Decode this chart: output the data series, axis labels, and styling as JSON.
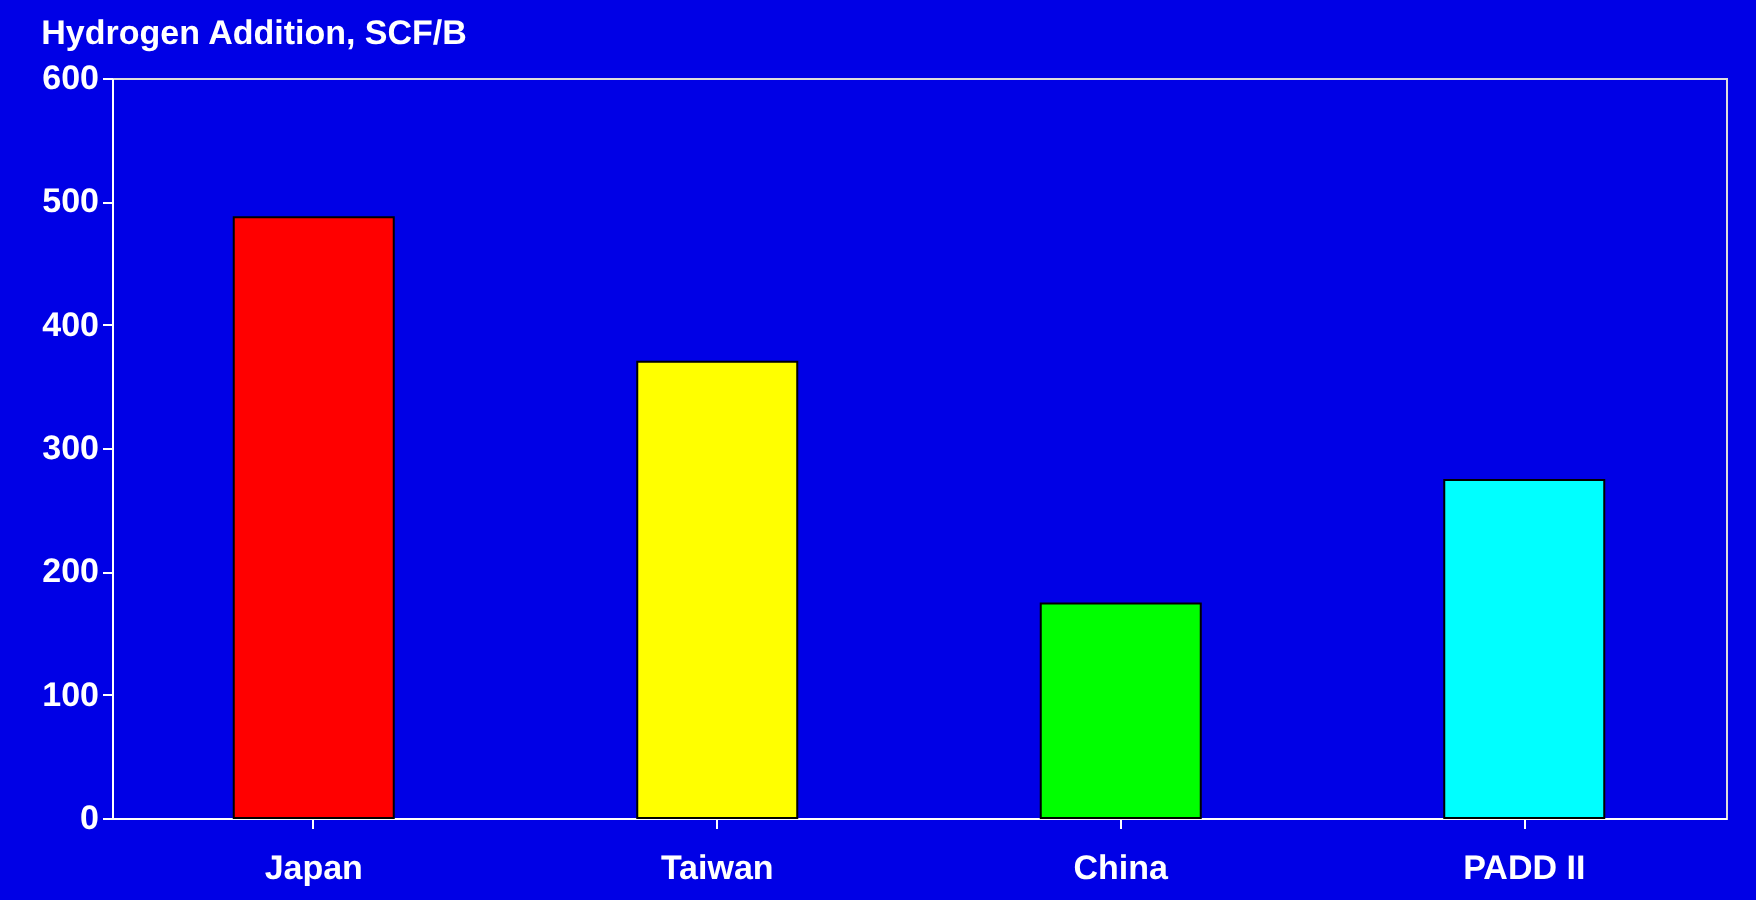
{
  "chart_data": {
    "type": "bar",
    "title": "Hydrogen Addition, SCF/B",
    "categories": [
      "Japan",
      "Taiwan",
      "China",
      "PADD II"
    ],
    "values": [
      487,
      370,
      174,
      274
    ],
    "colors": [
      "#ff0000",
      "#ffff00",
      "#00ff00",
      "#00ffff"
    ],
    "ylim": [
      0,
      600
    ],
    "yticks": [
      0,
      100,
      200,
      300,
      400,
      500,
      600
    ],
    "grid": false
  }
}
